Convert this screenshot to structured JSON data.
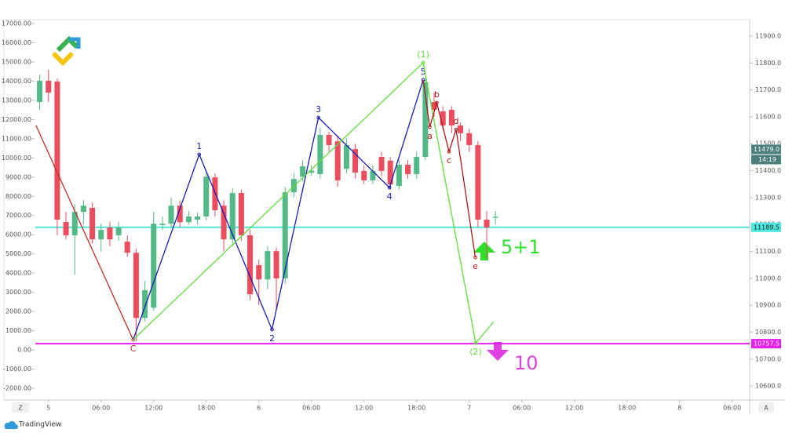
{
  "chart_data": {
    "type": "candlestick",
    "xlim": [
      -1.5,
      80
    ],
    "xticks": [
      {
        "value": 0,
        "label": "5"
      },
      {
        "value": 6,
        "label": "06:00"
      },
      {
        "value": 12,
        "label": "12:00"
      },
      {
        "value": 18,
        "label": "18:00"
      },
      {
        "value": 24,
        "label": "6"
      },
      {
        "value": 30,
        "label": "06:00"
      },
      {
        "value": 36,
        "label": "12:00"
      },
      {
        "value": 42,
        "label": "18:00"
      },
      {
        "value": 48,
        "label": "7"
      },
      {
        "value": 54,
        "label": "06:00"
      },
      {
        "value": 60,
        "label": "12:00"
      },
      {
        "value": 66,
        "label": "18:00"
      },
      {
        "value": 72,
        "label": "8"
      },
      {
        "value": 78,
        "label": "06:00"
      }
    ],
    "ylim": [
      10548,
      11961
    ],
    "yticks": [
      {
        "value": 10600,
        "label": "10600.0"
      },
      {
        "value": 10700,
        "label": "10700.0"
      },
      {
        "value": 10800,
        "label": "10800.0"
      },
      {
        "value": 10900,
        "label": "10900.0"
      },
      {
        "value": 11000,
        "label": "11000.0"
      },
      {
        "value": 11100,
        "label": "11100.0"
      },
      {
        "value": 11200,
        "label": "11200.0"
      },
      {
        "value": 11300,
        "label": "11300.0"
      },
      {
        "value": 11400,
        "label": "11400.0"
      },
      {
        "value": 11500,
        "label": "11500.0"
      },
      {
        "value": 11600,
        "label": "11600.0"
      },
      {
        "value": 11700,
        "label": "11700.0"
      },
      {
        "value": 11800,
        "label": "11800.0"
      },
      {
        "value": 11900,
        "label": "11900.0"
      }
    ],
    "y2lim": [
      -2612,
      17204
    ],
    "y2ticks": [
      {
        "value": -2000,
        "label": "-2000.00"
      },
      {
        "value": -1000,
        "label": "-1000.00"
      },
      {
        "value": 0,
        "label": "0.00"
      },
      {
        "value": 1000,
        "label": "1000.00"
      },
      {
        "value": 2000,
        "label": "2000.00"
      },
      {
        "value": 3000,
        "label": "3000.00"
      },
      {
        "value": 4000,
        "label": "4000.00"
      },
      {
        "value": 5000,
        "label": "5000.00"
      },
      {
        "value": 6000,
        "label": "6000.00"
      },
      {
        "value": 7000,
        "label": "7000.00"
      },
      {
        "value": 8000,
        "label": "8000.00"
      },
      {
        "value": 9000,
        "label": "9000.00"
      },
      {
        "value": 10000,
        "label": "10000.00"
      },
      {
        "value": 11000,
        "label": "11000.00"
      },
      {
        "value": 12000,
        "label": "12000.00"
      },
      {
        "value": 13000,
        "label": "13000.00"
      },
      {
        "value": 14000,
        "label": "14000.00"
      },
      {
        "value": 15000,
        "label": "15000.00"
      },
      {
        "value": 16000,
        "label": "16000.00"
      },
      {
        "value": 17000,
        "label": "17000.00"
      }
    ],
    "grid": false,
    "up_color": "#53b987",
    "down_color": "#eb4d5c",
    "candles": {
      "x": [
        -1,
        0,
        1,
        2,
        3,
        4,
        5,
        6,
        7,
        8,
        9,
        10,
        11,
        12,
        13,
        14,
        15,
        16,
        17,
        18,
        19,
        20,
        21,
        22,
        23,
        24,
        25,
        26,
        27,
        28,
        29,
        30,
        31,
        32,
        33,
        34,
        35,
        36,
        37,
        38,
        39,
        40,
        41,
        42,
        43,
        44,
        45,
        46,
        47,
        48,
        49,
        50,
        51
      ],
      "open": [
        11655,
        11734,
        11731,
        11209,
        11160,
        11247,
        11262,
        11145,
        11189,
        11160,
        11136,
        11095,
        10853,
        10891,
        11198,
        11203,
        11270,
        11209,
        11218,
        11230,
        11375,
        11270,
        11145,
        11317,
        11160,
        11049,
        10996,
        11101,
        11000,
        11320,
        11378,
        11393,
        11387,
        11533,
        11509,
        11407,
        11480,
        11399,
        11364,
        11451,
        11437,
        11343,
        11422,
        11387,
        11451,
        11655,
        11620,
        11626,
        11568,
        11539,
        11495,
        11218,
        11225
      ],
      "high": [
        11757,
        11775,
        11743,
        11247,
        11276,
        11291,
        11282,
        11203,
        11210,
        11210,
        11160,
        11110,
        10990,
        11247,
        11230,
        11300,
        11290,
        11250,
        11245,
        11400,
        11390,
        11290,
        11335,
        11330,
        11180,
        11070,
        11120,
        11115,
        11340,
        11390,
        11440,
        11420,
        11560,
        11545,
        11530,
        11520,
        11500,
        11420,
        11420,
        11470,
        11450,
        11440,
        11440,
        11470,
        11743,
        11690,
        11640,
        11640,
        11580,
        11555,
        11510,
        11250,
        11250
      ],
      "low": [
        11626,
        11655,
        11160,
        11145,
        11014,
        11200,
        11130,
        11100,
        11120,
        11140,
        11080,
        10766,
        10840,
        10880,
        11180,
        11190,
        11190,
        11200,
        11200,
        11215,
        11230,
        11100,
        11120,
        11140,
        10920,
        10900,
        10960,
        10880,
        10980,
        11300,
        11360,
        11380,
        11370,
        11470,
        11340,
        11390,
        11370,
        11350,
        11350,
        11380,
        11330,
        11330,
        11370,
        11370,
        11440,
        11600,
        11550,
        11540,
        11510,
        11470,
        11189,
        11072,
        11200
      ],
      "close": [
        11734,
        11690,
        11218,
        11160,
        11247,
        11270,
        11145,
        11180,
        11145,
        11189,
        11095,
        10853,
        10956,
        11203,
        11203,
        11270,
        11209,
        11230,
        11230,
        11378,
        11253,
        11145,
        11317,
        11160,
        10941,
        10996,
        11101,
        11000,
        11320,
        11369,
        11416,
        11400,
        11533,
        11495,
        11364,
        11495,
        11393,
        11364,
        11399,
        11399,
        11349,
        11422,
        11387,
        11451,
        11728,
        11626,
        11568,
        11568,
        11539,
        11495,
        11218,
        11189,
        11229
      ]
    },
    "waves": [
      {
        "color": "#c0302a",
        "x": [
          -1.43,
          9.66
        ],
        "values": [
          11568,
          10772
        ],
        "labels": [
          null,
          "C"
        ]
      },
      {
        "color": "#1a1ab0",
        "x": [
          9.66,
          17.2,
          25.5,
          30.8,
          38.9,
          42.75
        ],
        "values": [
          10772,
          11460,
          10810,
          11597,
          11337,
          11737
        ],
        "labels": [
          null,
          "1",
          "2",
          "3",
          "4",
          "5"
        ]
      },
      {
        "color": "#5ee03a",
        "x": [
          9.66,
          42.75,
          48.75,
          50.8
        ],
        "values": [
          10772,
          11801,
          10760,
          10839
        ],
        "labels": [
          null,
          "(1)",
          "(2)",
          null
        ]
      },
      {
        "color": "#b01818",
        "x": [
          42.75,
          43.5,
          44.3,
          45.7,
          46.5,
          48.7
        ],
        "values": [
          11737,
          11562,
          11652,
          11471,
          11553,
          11078
        ],
        "labels": [
          null,
          "a",
          "b",
          "c",
          "d",
          "e"
        ]
      }
    ],
    "levels": [
      {
        "value": 11189.5,
        "color": "#4de8e0"
      },
      {
        "value": 10757.5,
        "color": "#e51ee8"
      }
    ],
    "price_tags": [
      {
        "value": 11479,
        "label": "11479.0",
        "color": "#4a7f7b"
      },
      {
        "value": 11189.5,
        "label": "11189.5",
        "color": "#4de8e0"
      },
      {
        "value": 10757.5,
        "label": "10757.5",
        "color": "#e51ee8"
      }
    ],
    "countdown": "14:19",
    "annotations": [
      {
        "text": "5+1",
        "color": "#2ee02a"
      },
      {
        "text": "10",
        "color": "#e040e0"
      }
    ],
    "scale_buttons": [
      "Z",
      "A"
    ],
    "brand": "TradingView"
  }
}
